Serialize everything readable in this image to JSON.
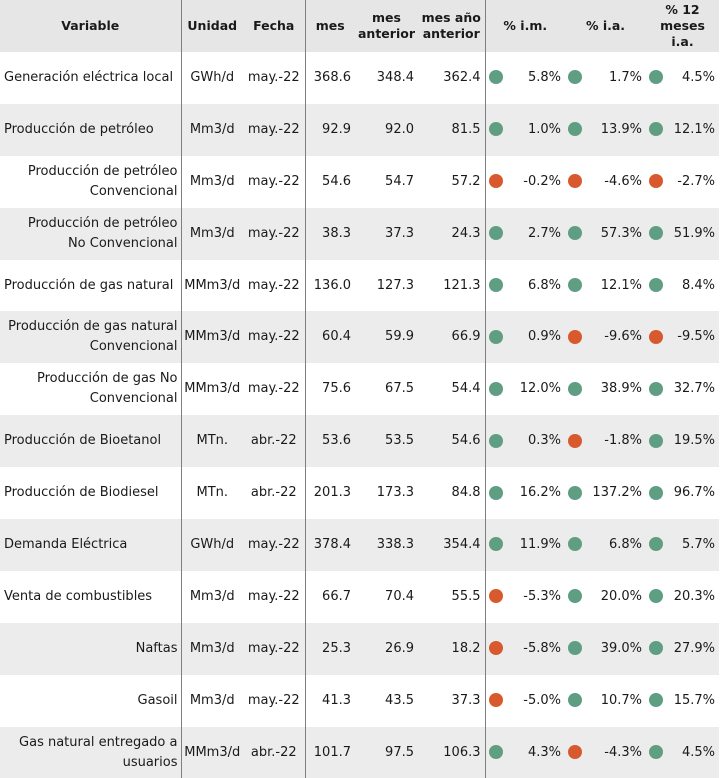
{
  "colors": {
    "green": "#5f9e83",
    "red": "#d8592d",
    "header_bg": "#e6e6e6",
    "band_bg": "#ececec"
  },
  "headers": {
    "variable": "Variable",
    "unit": "Unidad",
    "date": "Fecha",
    "month": "mes",
    "prev_month": "mes anterior",
    "prev_year": "mes año anterior",
    "pct_im": "% i.m.",
    "pct_ia": "% i.a.",
    "pct_12": "% 12 meses i.a."
  },
  "rows": [
    {
      "label": [
        "Generación eléctrica local"
      ],
      "align": "left",
      "unit": "GWh/d",
      "date": "may.-22",
      "month": "368.6",
      "prev_month": "348.4",
      "prev_year": "362.4",
      "im_status": "green",
      "im": "5.8%",
      "ia_status": "green",
      "ia": "1.7%",
      "m12_status": "green",
      "m12": "4.5%"
    },
    {
      "label": [
        "Producción de petróleo"
      ],
      "align": "left",
      "unit": "Mm3/d",
      "date": "may.-22",
      "month": "92.9",
      "prev_month": "92.0",
      "prev_year": "81.5",
      "im_status": "green",
      "im": "1.0%",
      "ia_status": "green",
      "ia": "13.9%",
      "m12_status": "green",
      "m12": "12.1%"
    },
    {
      "label": [
        "Producción de petróleo",
        "Convencional"
      ],
      "align": "right",
      "unit": "Mm3/d",
      "date": "may.-22",
      "month": "54.6",
      "prev_month": "54.7",
      "prev_year": "57.2",
      "im_status": "red",
      "im": "-0.2%",
      "ia_status": "red",
      "ia": "-4.6%",
      "m12_status": "red",
      "m12": "-2.7%"
    },
    {
      "label": [
        "Producción de petróleo",
        "No Convencional"
      ],
      "align": "right",
      "unit": "Mm3/d",
      "date": "may.-22",
      "month": "38.3",
      "prev_month": "37.3",
      "prev_year": "24.3",
      "im_status": "green",
      "im": "2.7%",
      "ia_status": "green",
      "ia": "57.3%",
      "m12_status": "green",
      "m12": "51.9%"
    },
    {
      "label": [
        "Producción de gas natural"
      ],
      "align": "left",
      "unit": "MMm3/d",
      "date": "may.-22",
      "month": "136.0",
      "prev_month": "127.3",
      "prev_year": "121.3",
      "im_status": "green",
      "im": "6.8%",
      "ia_status": "green",
      "ia": "12.1%",
      "m12_status": "green",
      "m12": "8.4%"
    },
    {
      "label": [
        "Producción de gas natural",
        "Convencional"
      ],
      "align": "right",
      "unit": "MMm3/d",
      "date": "may.-22",
      "month": "60.4",
      "prev_month": "59.9",
      "prev_year": "66.9",
      "im_status": "green",
      "im": "0.9%",
      "ia_status": "red",
      "ia": "-9.6%",
      "m12_status": "red",
      "m12": "-9.5%"
    },
    {
      "label": [
        "Producción de gas No",
        "Convencional"
      ],
      "align": "right",
      "unit": "MMm3/d",
      "date": "may.-22",
      "month": "75.6",
      "prev_month": "67.5",
      "prev_year": "54.4",
      "im_status": "green",
      "im": "12.0%",
      "ia_status": "green",
      "ia": "38.9%",
      "m12_status": "green",
      "m12": "32.7%"
    },
    {
      "label": [
        "Producción de Bioetanol"
      ],
      "align": "left",
      "unit": "MTn.",
      "date": "abr.-22",
      "month": "53.6",
      "prev_month": "53.5",
      "prev_year": "54.6",
      "im_status": "green",
      "im": "0.3%",
      "ia_status": "red",
      "ia": "-1.8%",
      "m12_status": "green",
      "m12": "19.5%"
    },
    {
      "label": [
        "Producción de Biodiesel"
      ],
      "align": "left",
      "unit": "MTn.",
      "date": "abr.-22",
      "month": "201.3",
      "prev_month": "173.3",
      "prev_year": "84.8",
      "im_status": "green",
      "im": "16.2%",
      "ia_status": "green",
      "ia": "137.2%",
      "m12_status": "green",
      "m12": "96.7%"
    },
    {
      "label": [
        "Demanda Eléctrica"
      ],
      "align": "left",
      "unit": "GWh/d",
      "date": "may.-22",
      "month": "378.4",
      "prev_month": "338.3",
      "prev_year": "354.4",
      "im_status": "green",
      "im": "11.9%",
      "ia_status": "green",
      "ia": "6.8%",
      "m12_status": "green",
      "m12": "5.7%"
    },
    {
      "label": [
        "Venta de combustibles"
      ],
      "align": "left",
      "unit": "Mm3/d",
      "date": "may.-22",
      "month": "66.7",
      "prev_month": "70.4",
      "prev_year": "55.5",
      "im_status": "red",
      "im": "-5.3%",
      "ia_status": "green",
      "ia": "20.0%",
      "m12_status": "green",
      "m12": "20.3%"
    },
    {
      "label": [
        "Naftas"
      ],
      "align": "right",
      "unit": "Mm3/d",
      "date": "may.-22",
      "month": "25.3",
      "prev_month": "26.9",
      "prev_year": "18.2",
      "im_status": "red",
      "im": "-5.8%",
      "ia_status": "green",
      "ia": "39.0%",
      "m12_status": "green",
      "m12": "27.9%"
    },
    {
      "label": [
        "Gasoil"
      ],
      "align": "right",
      "unit": "Mm3/d",
      "date": "may.-22",
      "month": "41.3",
      "prev_month": "43.5",
      "prev_year": "37.3",
      "im_status": "red",
      "im": "-5.0%",
      "ia_status": "green",
      "ia": "10.7%",
      "m12_status": "green",
      "m12": "15.7%"
    },
    {
      "label": [
        "Gas natural entregado a",
        "usuarios"
      ],
      "align": "right",
      "unit": "MMm3/d",
      "date": "abr.-22",
      "month": "101.7",
      "prev_month": "97.5",
      "prev_year": "106.3",
      "im_status": "green",
      "im": "4.3%",
      "ia_status": "red",
      "ia": "-4.3%",
      "m12_status": "green",
      "m12": "4.5%"
    }
  ]
}
